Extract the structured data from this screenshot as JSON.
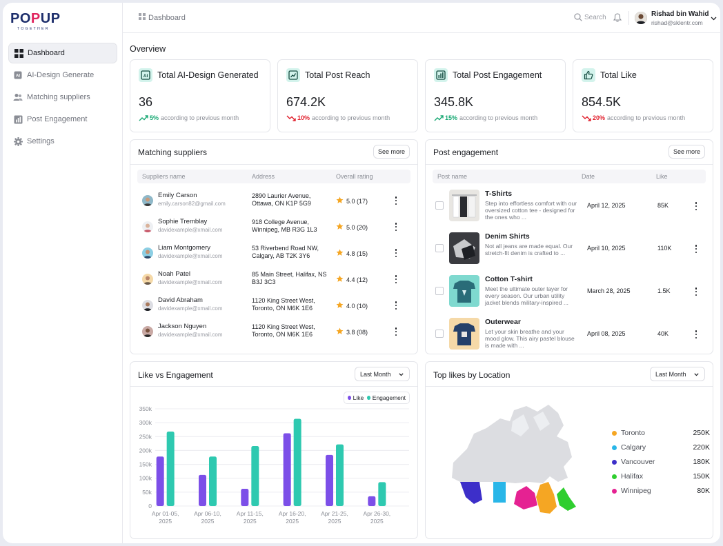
{
  "brand": {
    "logo_main_a": "PO",
    "logo_main_b": "P",
    "logo_main_c": "UP",
    "logo_sub": "TOGETHER",
    "accent": "#e0245e",
    "navy": "#1c2d6b"
  },
  "sidebar": {
    "items": [
      {
        "label": "Dashboard",
        "icon": "grid-icon"
      },
      {
        "label": "AI-Design Generate",
        "icon": "ai-icon"
      },
      {
        "label": "Matching suppliers",
        "icon": "users-icon"
      },
      {
        "label": "Post Engagement",
        "icon": "chart-icon"
      },
      {
        "label": "Settings",
        "icon": "gear-icon"
      }
    ]
  },
  "topbar": {
    "breadcrumb": "Dashboard",
    "search_placeholder": "Search",
    "user_name": "Rishad bin Wahid",
    "user_email": "rishad@sklentr.com"
  },
  "overview": {
    "title": "Overview",
    "stats": [
      {
        "title": "Total AI-Design Generated",
        "value": "36",
        "pct": "5%",
        "trend": "up",
        "note": "according to previous month"
      },
      {
        "title": "Total Post Reach",
        "value": "674.2K",
        "pct": "10%",
        "trend": "down",
        "note": "according to previous month"
      },
      {
        "title": "Total Post Engagement",
        "value": "345.8K",
        "pct": "15%",
        "trend": "up",
        "note": "according to previous month"
      },
      {
        "title": "Total Like",
        "value": "854.5K",
        "pct": "20%",
        "trend": "down",
        "note": "according to previous month"
      }
    ]
  },
  "suppliers": {
    "title": "Matching suppliers",
    "see_more": "See more",
    "columns": [
      "Suppliers name",
      "Address",
      "Overall rating"
    ],
    "rows": [
      {
        "name": "Emily Carson",
        "email": "emily.carson82@gmail.com",
        "address": "2890 Laurier Avenue, Ottawa, ON K1P 5G9",
        "rating": "5.0 (17)"
      },
      {
        "name": "Sophie Tremblay",
        "email": "davidexample@xmail.com",
        "address": "918 College Avenue, Winnipeg, MB R3G 1L3",
        "rating": "5.0 (20)"
      },
      {
        "name": "Liam Montgomery",
        "email": "davidexample@xmail.com",
        "address": "53 Riverbend Road NW, Calgary, AB T2K 3Y6",
        "rating": "4.8 (15)"
      },
      {
        "name": "Noah Patel",
        "email": "davidexample@xmail.com",
        "address": "85 Main Street, Halifax, NS B3J 3C3",
        "rating": "4.4 (12)"
      },
      {
        "name": "David Abraham",
        "email": "davidexample@xmail.com",
        "address": "1120 King Street West, Toronto, ON M6K 1E6",
        "rating": "4.0 (10)"
      },
      {
        "name": "Jackson Nguyen",
        "email": "davidexample@xmail.com",
        "address": "1120 King Street West, Toronto, ON M6K 1E6",
        "rating": "3.8 (08)"
      }
    ]
  },
  "posts": {
    "title": "Post engagement",
    "see_more": "See more",
    "columns": [
      "Post name",
      "Date",
      "Like"
    ],
    "rows": [
      {
        "title": "T-Shirts",
        "desc": "Step into effortless comfort with our oversized cotton tee - designed for the ones who ...",
        "date": "April 12, 2025",
        "like": "85K"
      },
      {
        "title": "Denim Shirts",
        "desc": "Not all jeans are made equal. Our stretch-fit denim is crafted to ...",
        "date": "April 10, 2025",
        "like": "110K"
      },
      {
        "title": "Cotton T-shirt",
        "desc": "Meet the ultimate outer layer for every season. Our urban utility jacket blends military-inspired ...",
        "date": "March 28, 2025",
        "like": "1.5K"
      },
      {
        "title": "Outerwear",
        "desc": "Let your skin breathe and your mood glow. This airy pastel blouse is made with ...",
        "date": "April 08, 2025",
        "like": "40K"
      }
    ]
  },
  "like_chart": {
    "title": "Like vs Engagement",
    "range_select": "Last Month",
    "colors": {
      "like": "#7c4fe8",
      "engagement": "#2ec9b0"
    }
  },
  "location": {
    "title": "Top likes by Location",
    "range_select": "Last Month",
    "items": [
      {
        "name": "Toronto",
        "value": "250K",
        "color": "#f5a623"
      },
      {
        "name": "Calgary",
        "value": "220K",
        "color": "#29b6e8"
      },
      {
        "name": "Vancouver",
        "value": "180K",
        "color": "#3d2fc9"
      },
      {
        "name": "Halifax",
        "value": "150K",
        "color": "#2fce2f"
      },
      {
        "name": "Winnipeg",
        "value": "80K",
        "color": "#e52292"
      }
    ]
  },
  "chart_data": {
    "type": "bar",
    "categories": [
      "Apr 01-05, 2025",
      "Apr 06-10, 2025",
      "Apr 11-15, 2025",
      "Apr 16-20, 2025",
      "Apr 21-25, 2025",
      "Apr 26-30, 2025"
    ],
    "series": [
      {
        "name": "Like",
        "values": [
          178000,
          112000,
          62000,
          262000,
          184000,
          35000
        ]
      },
      {
        "name": "Engagement",
        "values": [
          268000,
          178000,
          216000,
          314000,
          222000,
          86000
        ]
      }
    ],
    "yticks": [
      "0",
      "50k",
      "100k",
      "150k",
      "200k",
      "250k",
      "300k",
      "350k"
    ],
    "ylim": [
      0,
      350000
    ],
    "grid": true,
    "legend": "top-right"
  }
}
